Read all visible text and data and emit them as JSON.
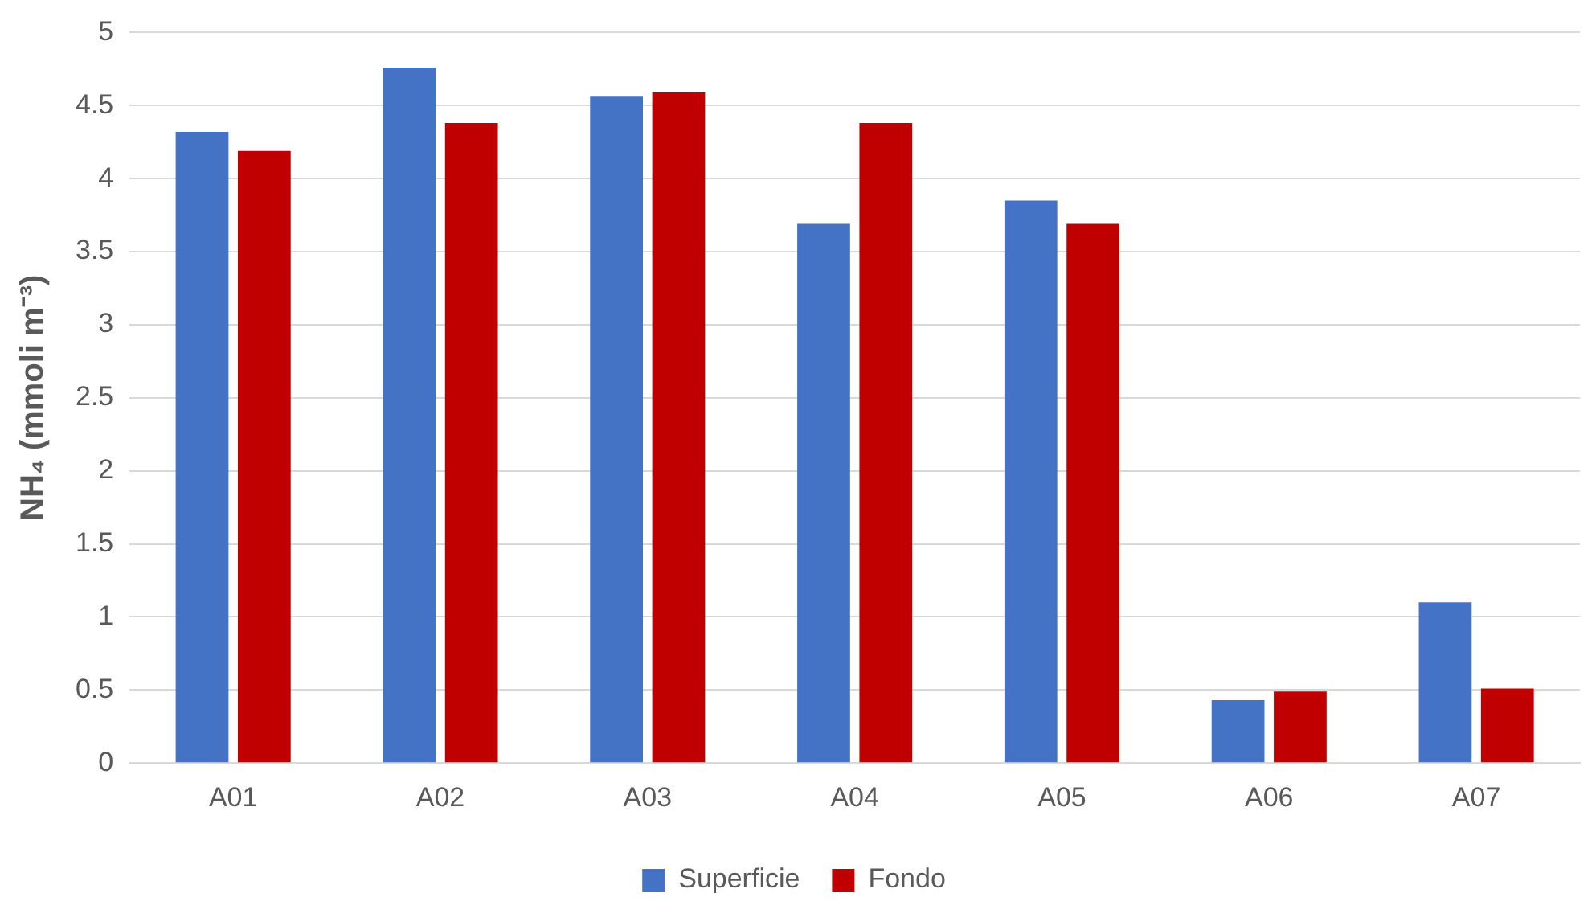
{
  "chart_data": {
    "type": "bar",
    "ylabel": "NH₄ (mmoli m⁻³)",
    "categories": [
      "A01",
      "A02",
      "A03",
      "A04",
      "A05",
      "A06",
      "A07"
    ],
    "series": [
      {
        "name": "Superficie",
        "color": "#4472c4",
        "values": [
          4.32,
          4.76,
          4.56,
          3.69,
          3.85,
          0.43,
          1.1
        ]
      },
      {
        "name": "Fondo",
        "color": "#c00000",
        "values": [
          4.19,
          4.38,
          4.59,
          4.38,
          3.69,
          0.49,
          0.51
        ]
      }
    ],
    "ylim": [
      0,
      5
    ],
    "yticks": [
      0,
      {
        "value": 0.5,
        "label": "0.5"
      },
      1,
      {
        "value": 1.5,
        "label": "1.5"
      },
      2,
      {
        "value": 2.5,
        "label": "2.5"
      },
      3,
      {
        "value": 3.5,
        "label": "3.5"
      },
      4,
      {
        "value": 4.5,
        "label": "4.5"
      },
      5
    ],
    "grid": "y",
    "legend": "bottom"
  }
}
